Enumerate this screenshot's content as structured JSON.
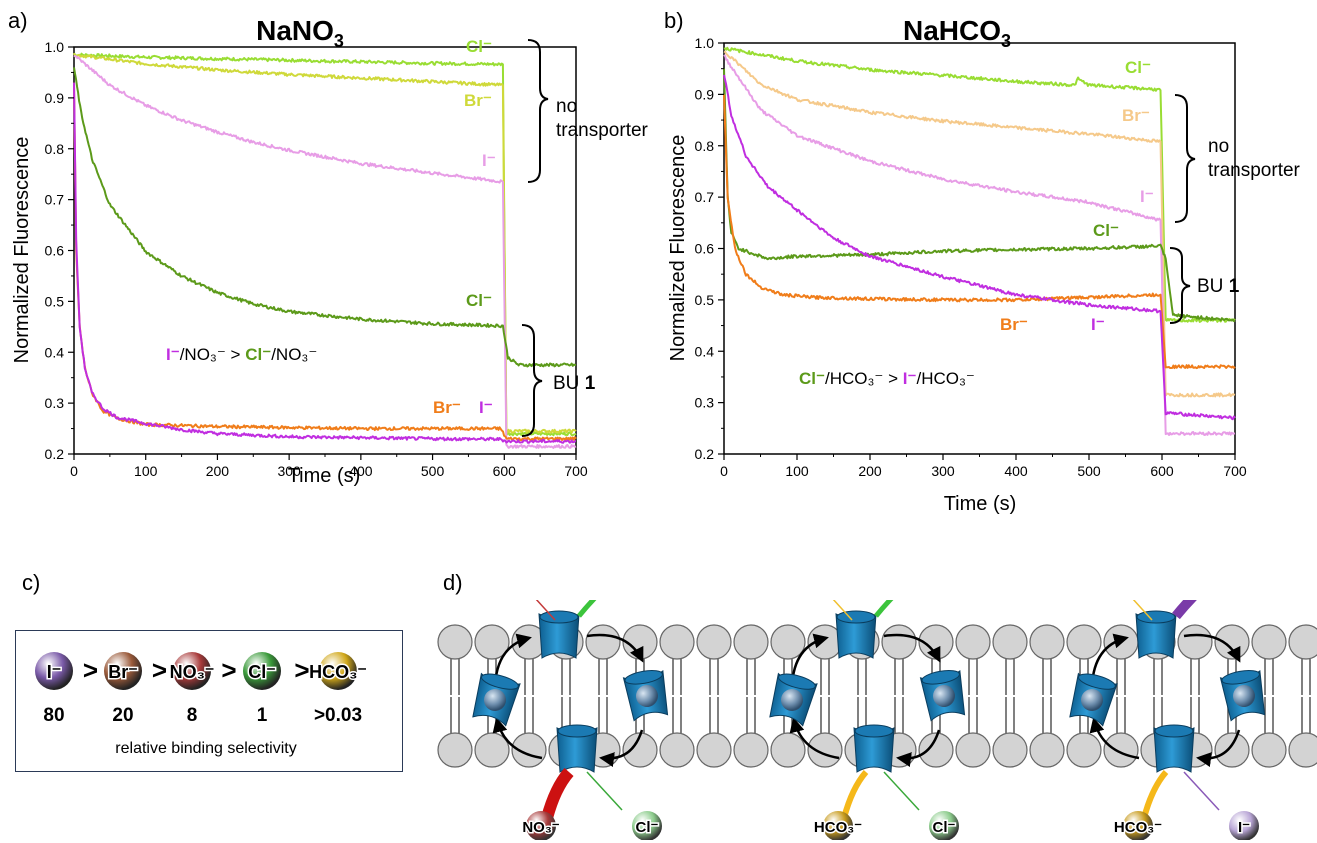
{
  "panels": {
    "a": "a)",
    "b": "b)",
    "c": "c)",
    "d": "d)"
  },
  "colors": {
    "cl_ctrl": "#99dd33",
    "br_ctrl_a": "#cfd93a",
    "br_ctrl_b": "#f5c98a",
    "i_ctrl": "#e79de6",
    "cl_bu": "#5c9a1a",
    "br_bu": "#f07d1a",
    "i_bu": "#c02ee0"
  },
  "chart_data": [
    {
      "type": "line",
      "title": "NaNO3",
      "title_main": "NaNO",
      "title_sub": "3",
      "xlabel": "Time (s)",
      "ylabel": "Normalized Fluorescence",
      "xlim": [
        0,
        700
      ],
      "ylim": [
        0.2,
        1.0
      ],
      "xticks": [
        "0",
        "100",
        "200",
        "300",
        "400",
        "500",
        "600",
        "700"
      ],
      "yticks": [
        "0.2",
        "0.3",
        "0.4",
        "0.5",
        "0.6",
        "0.7",
        "0.8",
        "0.9",
        "1.0"
      ],
      "series": [
        {
          "name": "Cl⁻",
          "group": "no transporter",
          "color": "#99dd33",
          "x": [
            0,
            100,
            200,
            300,
            400,
            500,
            598,
            603,
            700
          ],
          "y": [
            0.985,
            0.98,
            0.977,
            0.974,
            0.971,
            0.968,
            0.966,
            0.24,
            0.24
          ]
        },
        {
          "name": "Br⁻",
          "group": "no transporter",
          "color": "#cfd93a",
          "x": [
            0,
            100,
            200,
            300,
            400,
            500,
            598,
            603,
            700
          ],
          "y": [
            0.985,
            0.967,
            0.955,
            0.946,
            0.939,
            0.932,
            0.925,
            0.245,
            0.245
          ]
        },
        {
          "name": "I⁻",
          "group": "no transporter",
          "color": "#e79de6",
          "x": [
            0,
            50,
            100,
            150,
            200,
            250,
            300,
            400,
            500,
            598,
            603,
            700
          ],
          "y": [
            0.985,
            0.925,
            0.885,
            0.856,
            0.833,
            0.813,
            0.797,
            0.771,
            0.752,
            0.735,
            0.215,
            0.215
          ]
        },
        {
          "name": "Cl⁻",
          "group": "BU 1",
          "color": "#5c9a1a",
          "x": [
            0,
            10,
            25,
            50,
            100,
            150,
            200,
            250,
            300,
            400,
            500,
            598,
            605,
            620,
            700
          ],
          "y": [
            0.96,
            0.87,
            0.78,
            0.69,
            0.598,
            0.55,
            0.517,
            0.495,
            0.48,
            0.465,
            0.456,
            0.452,
            0.39,
            0.375,
            0.375
          ]
        },
        {
          "name": "Br⁻",
          "group": "BU 1",
          "color": "#f07d1a",
          "x": [
            0,
            3,
            8,
            15,
            25,
            40,
            60,
            100,
            150,
            200,
            300,
            400,
            500,
            595,
            603,
            700
          ],
          "y": [
            0.93,
            0.6,
            0.45,
            0.37,
            0.32,
            0.285,
            0.27,
            0.258,
            0.256,
            0.254,
            0.252,
            0.25,
            0.25,
            0.25,
            0.23,
            0.23
          ]
        },
        {
          "name": "I⁻",
          "group": "BU 1",
          "color": "#c02ee0",
          "x": [
            0,
            3,
            8,
            15,
            25,
            40,
            60,
            100,
            150,
            200,
            300,
            400,
            500,
            595,
            603,
            700
          ],
          "y": [
            0.93,
            0.62,
            0.45,
            0.37,
            0.32,
            0.29,
            0.272,
            0.26,
            0.248,
            0.24,
            0.234,
            0.232,
            0.23,
            0.229,
            0.225,
            0.225
          ]
        }
      ],
      "annotations": {
        "cl_ctrl": "Cl⁻",
        "br_ctrl": "Br⁻",
        "i_ctrl": "I⁻",
        "cl_bu": "Cl⁻",
        "br_bu": "Br⁻",
        "i_bu": "I⁻",
        "no_transporter_1": "no",
        "no_transporter_2": "transporter",
        "bu_text": "BU ",
        "bu_num": "1",
        "sel_i": "I⁻",
        "sel_mid": "/NO₃⁻ > ",
        "sel_cl": "Cl⁻",
        "sel_end": "/NO₃⁻"
      }
    },
    {
      "type": "line",
      "title": "NaHCO3",
      "title_main": "NaHCO",
      "title_sub": "3",
      "xlabel": "Time (s)",
      "ylabel": "Normalized Fluorescence",
      "xlim": [
        0,
        700
      ],
      "ylim": [
        0.2,
        1.0
      ],
      "xticks": [
        "0",
        "100",
        "200",
        "300",
        "400",
        "500",
        "600",
        "700"
      ],
      "yticks": [
        "0.2",
        "0.3",
        "0.4",
        "0.5",
        "0.6",
        "0.7",
        "0.8",
        "0.9",
        "1.0"
      ],
      "series": [
        {
          "name": "Cl⁻",
          "group": "no transporter",
          "color": "#99dd33",
          "x": [
            0,
            100,
            200,
            300,
            400,
            480,
            485,
            500,
            590,
            598,
            605,
            700
          ],
          "y": [
            0.99,
            0.965,
            0.948,
            0.937,
            0.925,
            0.918,
            0.93,
            0.918,
            0.91,
            0.908,
            0.46,
            0.46
          ]
        },
        {
          "name": "Br⁻",
          "group": "no transporter",
          "color": "#f5c98a",
          "x": [
            0,
            50,
            100,
            200,
            300,
            400,
            500,
            598,
            605,
            700
          ],
          "y": [
            0.985,
            0.92,
            0.89,
            0.865,
            0.848,
            0.835,
            0.823,
            0.808,
            0.315,
            0.315
          ]
        },
        {
          "name": "I⁻",
          "group": "no transporter",
          "color": "#e79de6",
          "x": [
            0,
            50,
            100,
            200,
            300,
            400,
            500,
            598,
            605,
            700
          ],
          "y": [
            0.975,
            0.87,
            0.82,
            0.77,
            0.735,
            0.71,
            0.69,
            0.655,
            0.24,
            0.24
          ]
        },
        {
          "name": "Cl⁻",
          "group": "BU 1",
          "color": "#5c9a1a",
          "x": [
            0,
            5,
            10,
            20,
            40,
            60,
            100,
            200,
            300,
            400,
            500,
            598,
            605,
            615,
            700
          ],
          "y": [
            0.95,
            0.7,
            0.63,
            0.6,
            0.59,
            0.58,
            0.585,
            0.588,
            0.595,
            0.598,
            0.6,
            0.605,
            0.58,
            0.47,
            0.46
          ]
        },
        {
          "name": "Br⁻",
          "group": "BU 1",
          "color": "#f07d1a",
          "x": [
            0,
            5,
            15,
            30,
            50,
            80,
            120,
            200,
            300,
            400,
            500,
            598,
            605,
            700
          ],
          "y": [
            0.9,
            0.7,
            0.6,
            0.55,
            0.525,
            0.51,
            0.505,
            0.502,
            0.5,
            0.5,
            0.505,
            0.51,
            0.37,
            0.37
          ]
        },
        {
          "name": "I⁻",
          "group": "BU 1",
          "color": "#c02ee0",
          "x": [
            0,
            10,
            30,
            60,
            100,
            150,
            200,
            300,
            400,
            500,
            598,
            605,
            700
          ],
          "y": [
            0.94,
            0.86,
            0.78,
            0.72,
            0.675,
            0.62,
            0.585,
            0.545,
            0.51,
            0.49,
            0.478,
            0.28,
            0.27
          ]
        }
      ],
      "annotations": {
        "cl_ctrl": "Cl⁻",
        "br_ctrl": "Br⁻",
        "i_ctrl": "I⁻",
        "cl_bu": "Cl⁻",
        "br_bu": "Br⁻",
        "i_bu": "I⁻",
        "no_transporter_1": "no",
        "no_transporter_2": "transporter",
        "bu_text": "BU ",
        "bu_num": "1",
        "sel_cl": "Cl⁻",
        "sel_mid": "/HCO₃⁻ > ",
        "sel_i": "I⁻",
        "sel_end": "/HCO₃⁻"
      }
    }
  ],
  "selectivity": {
    "ions": [
      {
        "label": "I⁻",
        "value": "80",
        "color": "#7a5aa8"
      },
      {
        "label": "Br⁻",
        "value": "20",
        "color": "#9a5a3a"
      },
      {
        "label": "NO₃⁻",
        "value": "8",
        "color": "#a83a3a"
      },
      {
        "label": "Cl⁻",
        "value": "1",
        "color": "#3a9a3a"
      },
      {
        "label": "HCO₃⁻",
        "value": ">0.03",
        "color": "#d1a81a"
      }
    ],
    "separator": ">",
    "caption": "relative binding selectivity"
  },
  "mechanism": [
    {
      "out_top": "NO₃⁻",
      "in_top": "Cl⁻",
      "in_bottom": "NO₃⁻",
      "out_bottom": "Cl⁻",
      "top_out_color": "#d18b86",
      "top_in_color": "#3aa83a",
      "bot_in_color": "#a83a3a",
      "bot_out_color": "#8ccc8c",
      "top_arrow": "#c43a3a",
      "top_in_arrow": "#3cc43c",
      "bot_in_arrow": "#cc1111",
      "bot_out_arrow": "#3aa83a"
    },
    {
      "out_top": "HCO₃⁻",
      "in_top": "Cl⁻",
      "in_bottom": "HCO₃⁻",
      "out_bottom": "Cl⁻",
      "top_out_color": "#ecd9a6",
      "top_in_color": "#3aa83a",
      "bot_in_color": "#c79a1a",
      "bot_out_color": "#8ccc8c",
      "top_arrow": "#f0c030",
      "top_in_arrow": "#3cc43c",
      "bot_in_arrow": "#f5b81a",
      "bot_out_arrow": "#3aa83a"
    },
    {
      "out_top": "HCO₃⁻",
      "in_top": "I⁻",
      "in_bottom": "HCO₃⁻",
      "out_bottom": "I⁻",
      "top_out_color": "#ecd9a6",
      "top_in_color": "#8a6ab8",
      "bot_in_color": "#c79a1a",
      "bot_out_color": "#b9a6d6",
      "top_arrow": "#f0c030",
      "top_in_arrow": "#7a3aa8",
      "bot_in_arrow": "#f5b81a",
      "bot_out_arrow": "#8a5ab8"
    }
  ]
}
